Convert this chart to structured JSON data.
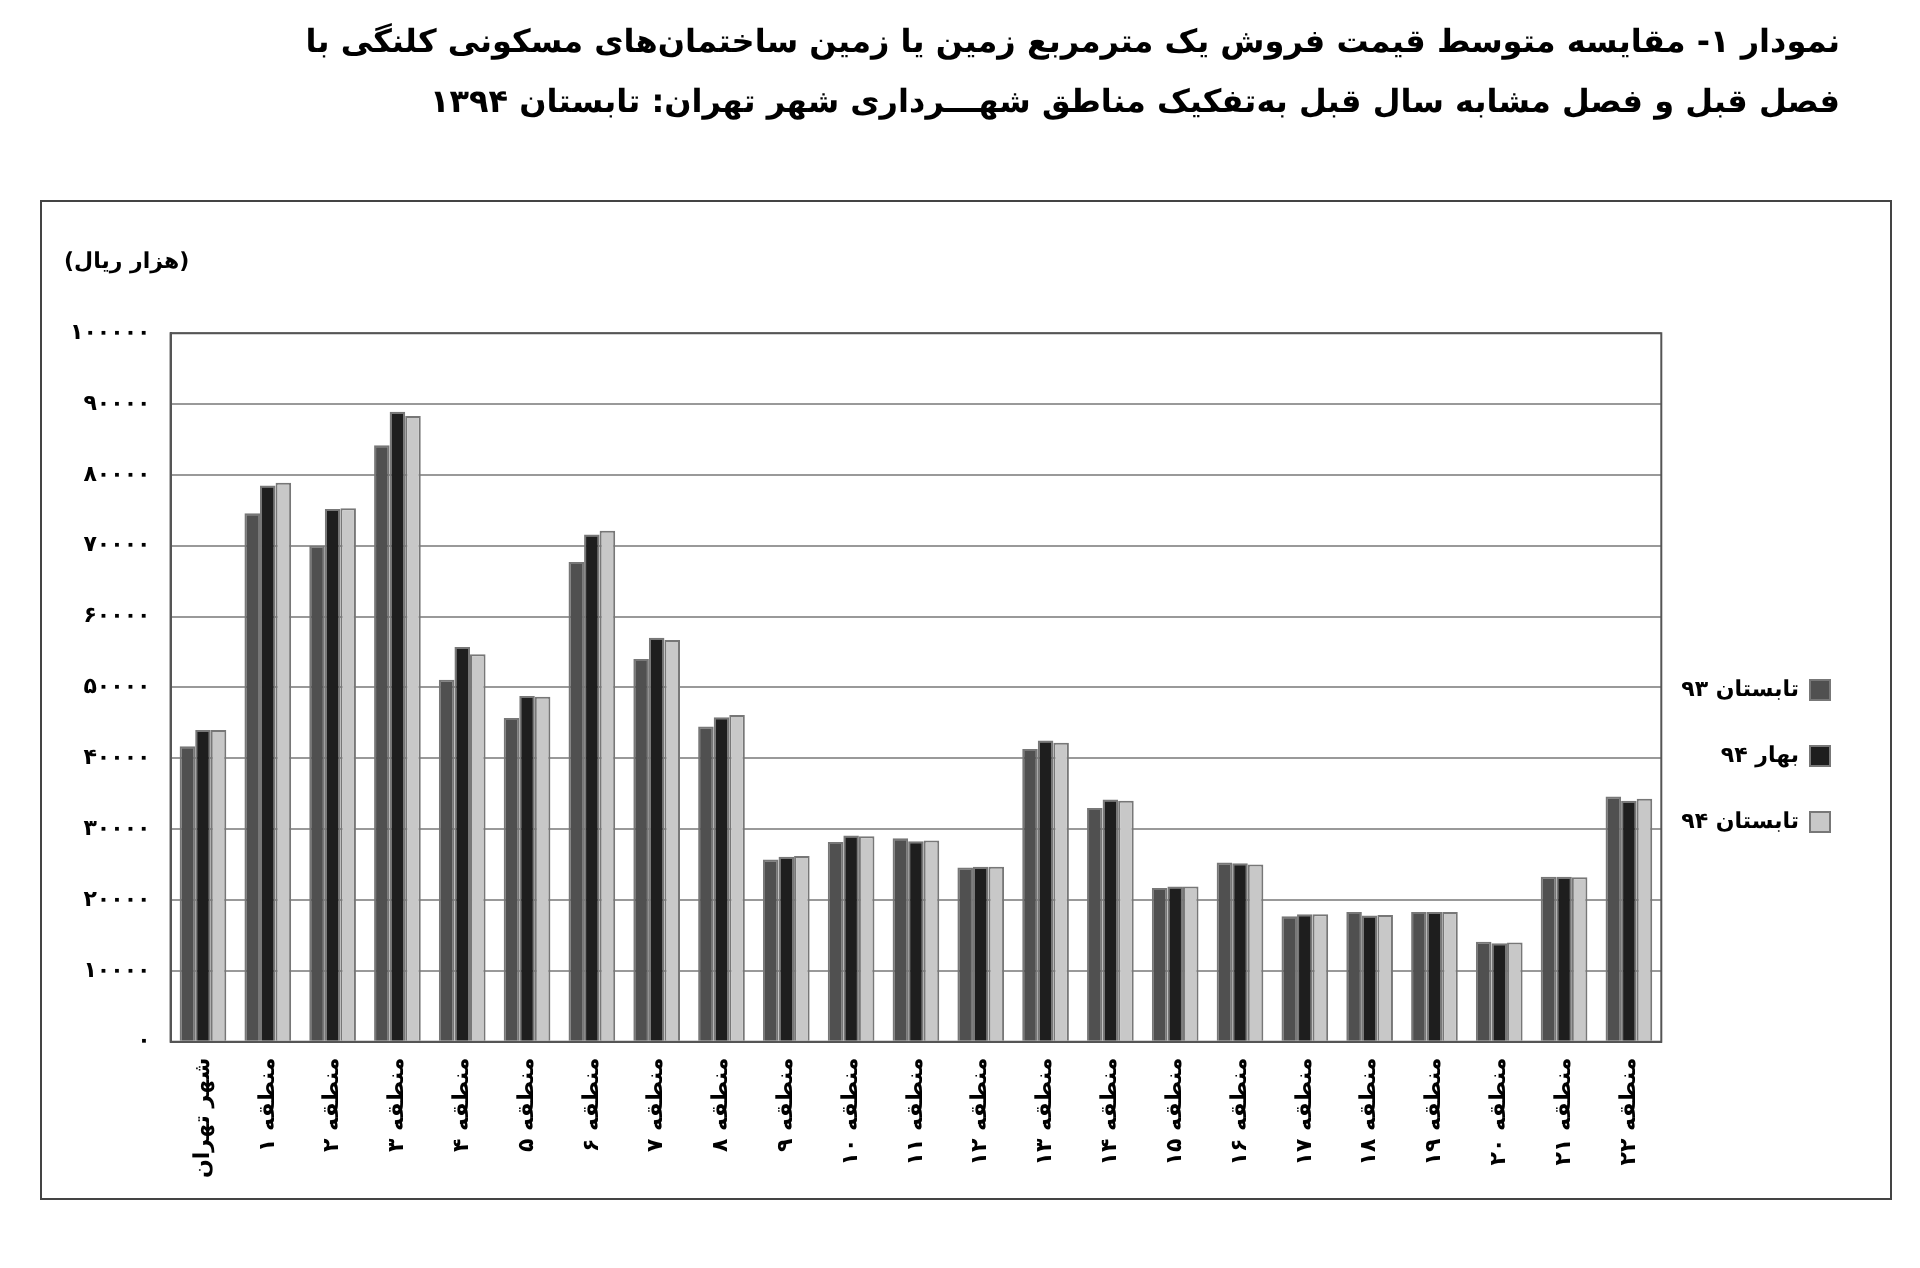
{
  "chart_data": {
    "type": "bar",
    "title": "نمودار ۱- مقایسه متوسط قیمت فروش یک مترمربع زمین یا زمین ساختمان‌های مسکونی کلنگی با فصل قبل و فصل مشابه سال قبل به‌تفکیک مناطق شهـــرداری شهر تهران: تابستان ۱۳۹۴",
    "ylabel": "(هزار ریال)",
    "categories": [
      "شهر تهران",
      "منطقه ۱",
      "منطقه ۲",
      "منطقه ۳",
      "منطقه ۴",
      "منطقه ۵",
      "منطقه ۶",
      "منطقه ۷",
      "منطقه ۸",
      "منطقه ۹",
      "منطقه ۱۰",
      "منطقه ۱۱",
      "منطقه ۱۲",
      "منطقه ۱۳",
      "منطقه ۱۴",
      "منطقه ۱۵",
      "منطقه ۱۶",
      "منطقه ۱۷",
      "منطقه ۱۸",
      "منطقه ۱۹",
      "منطقه ۲۰",
      "منطقه ۲۱",
      "منطقه ۲۲"
    ],
    "series": [
      {
        "name": "تابستان ۹۳",
        "color": "#505050",
        "values": [
          41700,
          74600,
          70000,
          84200,
          51100,
          45700,
          67700,
          54000,
          44500,
          25700,
          28200,
          28700,
          24600,
          41300,
          33000,
          21700,
          25300,
          17700,
          18300,
          18300,
          14100,
          23300,
          34600
        ]
      },
      {
        "name": "بهار ۹۴",
        "color": "#1e1e1e",
        "values": [
          44000,
          78500,
          75200,
          88900,
          55700,
          48800,
          71600,
          57000,
          45800,
          26100,
          29100,
          28300,
          24700,
          42500,
          34200,
          21900,
          25200,
          18000,
          17800,
          18300,
          13900,
          23300,
          34000
        ]
      },
      {
        "name": "تابستان ۹۴",
        "color": "#c8c8c8",
        "values": [
          44000,
          78900,
          75300,
          88300,
          54700,
          48700,
          72100,
          56700,
          46100,
          26200,
          29000,
          28400,
          24700,
          42200,
          34000,
          21900,
          25000,
          18000,
          17900,
          18300,
          14000,
          23200,
          34300
        ]
      }
    ],
    "ylim": [
      0,
      100000
    ],
    "yticks": [
      {
        "value": 0,
        "label": "۰"
      },
      {
        "value": 10000,
        "label": "۱۰۰۰۰"
      },
      {
        "value": 20000,
        "label": "۲۰۰۰۰"
      },
      {
        "value": 30000,
        "label": "۳۰۰۰۰"
      },
      {
        "value": 40000,
        "label": "۴۰۰۰۰"
      },
      {
        "value": 50000,
        "label": "۵۰۰۰۰"
      },
      {
        "value": 60000,
        "label": "۶۰۰۰۰"
      },
      {
        "value": 70000,
        "label": "۷۰۰۰۰"
      },
      {
        "value": 80000,
        "label": "۸۰۰۰۰"
      },
      {
        "value": 90000,
        "label": "۹۰۰۰۰"
      },
      {
        "value": 100000,
        "label": "۱۰۰۰۰۰"
      }
    ],
    "grid": "y",
    "legend": "right"
  }
}
